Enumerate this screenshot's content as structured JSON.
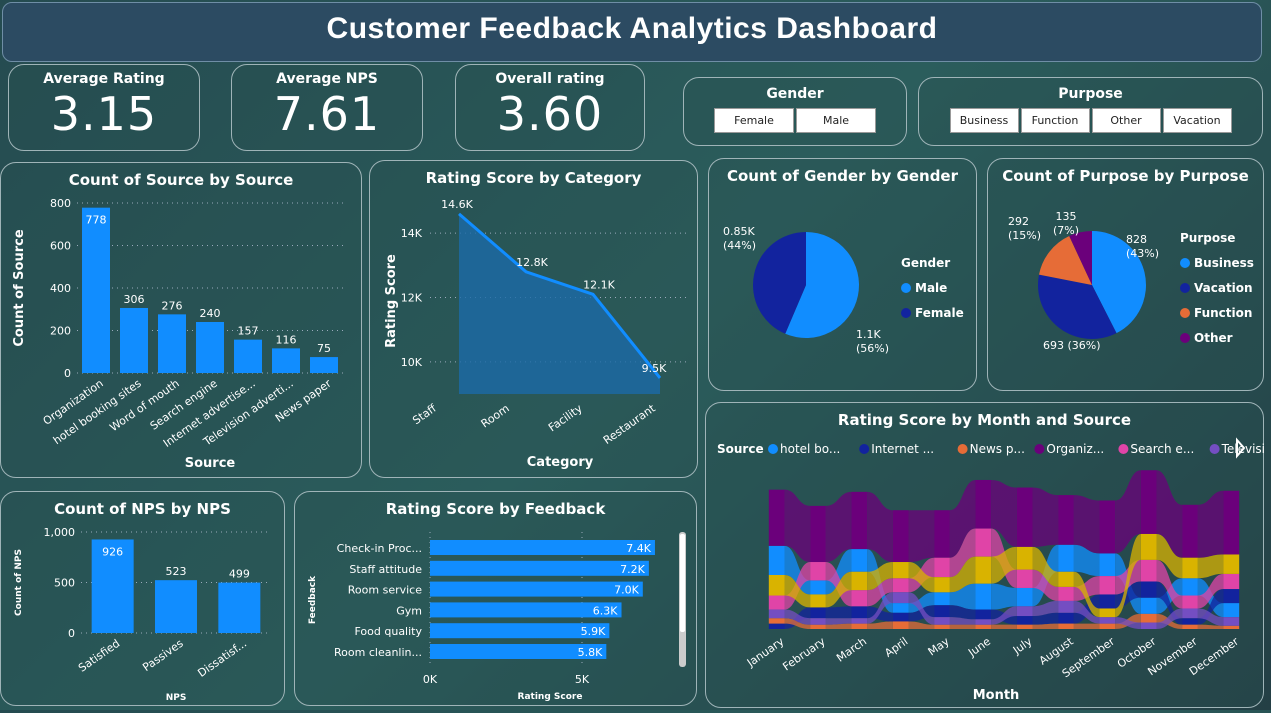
{
  "title": "Customer Feedback Analytics Dashboard",
  "kpis": [
    {
      "label": "Average Rating",
      "value": "3.15"
    },
    {
      "label": "Average NPS",
      "value": "7.61"
    },
    {
      "label": "Overall rating",
      "value": "3.60"
    }
  ],
  "gender_slicer": {
    "label": "Gender",
    "options": [
      "Female",
      "Male"
    ]
  },
  "purpose_slicer": {
    "label": "Purpose",
    "options": [
      "Business",
      "Function",
      "Other",
      "Vacation"
    ]
  },
  "colors": {
    "bar": "#118DFF"
  },
  "chart_data": [
    {
      "id": "source",
      "type": "bar",
      "title": "Count of Source by Source",
      "xlabel": "Source",
      "ylabel": "Count of Source",
      "categories": [
        "Organization",
        "hotel booking sites",
        "Word of mouth",
        "Search engine",
        "Internet advertise...",
        "Television adverti...",
        "News paper"
      ],
      "values": [
        778,
        306,
        276,
        240,
        157,
        116,
        75
      ],
      "ylim": [
        0,
        800
      ],
      "yticks": [
        "0",
        "200",
        "400",
        "600",
        "800"
      ]
    },
    {
      "id": "category",
      "type": "area",
      "title": "Rating Score by Category",
      "xlabel": "Category",
      "ylabel": "Rating Score",
      "categories": [
        "Staff",
        "Room",
        "Facility",
        "Restaurant"
      ],
      "values": [
        14600,
        12800,
        12100,
        9500
      ],
      "labels": [
        "14.6K",
        "12.8K",
        "12.1K",
        "9.5K"
      ],
      "ylim": [
        9000,
        15000
      ],
      "yticks": [
        "10K",
        "12K",
        "14K"
      ]
    },
    {
      "id": "gender",
      "type": "pie",
      "title": "Count of Gender by Gender",
      "legend_title": "Gender",
      "slices": [
        {
          "name": "Male",
          "value": 1100,
          "label": "1.1K",
          "pct": "(56%)",
          "color": "#118DFF"
        },
        {
          "name": "Female",
          "value": 850,
          "label": "0.85K",
          "pct": "(44%)",
          "color": "#12239E"
        }
      ]
    },
    {
      "id": "purpose",
      "type": "pie",
      "title": "Count of Purpose by Purpose",
      "legend_title": "Purpose",
      "slices": [
        {
          "name": "Business",
          "value": 828,
          "label": "828",
          "pct": "(43%)",
          "color": "#118DFF"
        },
        {
          "name": "Vacation",
          "value": 693,
          "label": "693",
          "pct": "(36%)",
          "color": "#12239E"
        },
        {
          "name": "Function",
          "value": 292,
          "label": "292",
          "pct": "(15%)",
          "color": "#E66C37"
        },
        {
          "name": "Other",
          "value": 135,
          "label": "135",
          "pct": "(7%)",
          "color": "#6B007B"
        }
      ]
    },
    {
      "id": "nps",
      "type": "bar",
      "title": "Count of NPS by NPS",
      "xlabel": "NPS",
      "ylabel": "Count of NPS",
      "categories": [
        "Satisfied",
        "Passives",
        "Dissatisf..."
      ],
      "values": [
        926,
        523,
        499
      ],
      "ylim": [
        0,
        1000
      ],
      "yticks": [
        "0",
        "500",
        "1,000"
      ]
    },
    {
      "id": "feedback",
      "type": "hbar",
      "title": "Rating Score by Feedback",
      "xlabel": "Rating Score",
      "ylabel": "Feedback",
      "categories": [
        "Check-in Proc...",
        "Staff attitude",
        "Room service",
        "Gym",
        "Food quality",
        "Room cleanlin..."
      ],
      "values": [
        7400,
        7200,
        7000,
        6300,
        5900,
        5800
      ],
      "labels": [
        "7.4K",
        "7.2K",
        "7.0K",
        "6.3K",
        "5.9K",
        "5.8K"
      ],
      "xticks": [
        "0K",
        "5K"
      ]
    },
    {
      "id": "ribbon",
      "type": "ribbon",
      "title": "Rating Score by Month and Source",
      "xlabel": "Month",
      "legend_title": "Source",
      "months": [
        "January",
        "February",
        "March",
        "April",
        "May",
        "June",
        "July",
        "August",
        "September",
        "October",
        "November",
        "December"
      ],
      "series": [
        {
          "name": "hotel bo...",
          "color": "#118DFF",
          "values": [
            27,
            13,
            21,
            9,
            12,
            24,
            17,
            25,
            21,
            15,
            16,
            13
          ]
        },
        {
          "name": "Internet ...",
          "color": "#12239E",
          "values": [
            5,
            10,
            11,
            8,
            11,
            9,
            8,
            10,
            13,
            15,
            6,
            13
          ]
        },
        {
          "name": "News p...",
          "color": "#E66C37",
          "values": [
            5,
            4,
            5,
            7,
            4,
            4,
            4,
            5,
            5,
            8,
            4,
            3
          ]
        },
        {
          "name": "Organiz...",
          "color": "#6B007B",
          "values": [
            52,
            52,
            53,
            48,
            44,
            45,
            55,
            46,
            49,
            59,
            49,
            59
          ]
        },
        {
          "name": "Search e...",
          "color": "#E044A7",
          "values": [
            13,
            17,
            15,
            13,
            18,
            26,
            17,
            13,
            17,
            20,
            12,
            14
          ]
        },
        {
          "name": "Televisio...",
          "color": "#744EC2",
          "values": [
            8,
            6,
            5,
            10,
            7,
            5,
            9,
            11,
            6,
            6,
            9,
            8
          ]
        },
        {
          "name": "",
          "color": "#D9B300",
          "values": [
            19,
            12,
            17,
            15,
            14,
            25,
            21,
            14,
            8,
            24,
            19,
            18
          ]
        }
      ]
    }
  ]
}
